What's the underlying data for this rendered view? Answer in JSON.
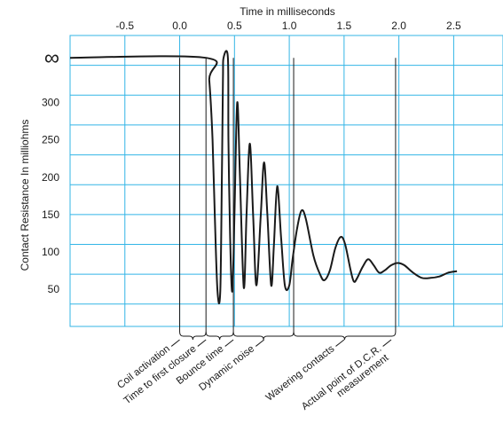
{
  "chart_data": {
    "type": "line",
    "title": "",
    "xlabel": "Time in milliseconds",
    "ylabel": "Contact Resistance In milliohms",
    "x_ticks": [
      {
        "value": -0.5,
        "label": "-0.5"
      },
      {
        "value": 0.0,
        "label": "0.0"
      },
      {
        "value": 0.5,
        "label": "0.5"
      },
      {
        "value": 1.0,
        "label": "1.0"
      },
      {
        "value": 1.5,
        "label": "1.5"
      },
      {
        "value": 2.0,
        "label": "2.0"
      },
      {
        "value": 2.5,
        "label": "2.5"
      }
    ],
    "y_ticks": [
      {
        "value": 50,
        "label": "50"
      },
      {
        "value": 100,
        "label": "100"
      },
      {
        "value": 150,
        "label": "150"
      },
      {
        "value": 200,
        "label": "200"
      },
      {
        "value": 250,
        "label": "250"
      },
      {
        "value": 300,
        "label": "300"
      },
      {
        "value": 360,
        "label": "∞"
      }
    ],
    "xlim": [
      -1.0,
      2.95
    ],
    "ylim": [
      0,
      390
    ],
    "grid": true,
    "grid_color": "#33b5e6",
    "line_color": "#1a1a1a",
    "infinity_value": 360,
    "series": [
      {
        "name": "",
        "points": [
          [
            -1.0,
            360
          ],
          [
            0.24,
            360
          ],
          [
            0.27,
            330
          ],
          [
            0.3,
            250
          ],
          [
            0.32,
            150
          ],
          [
            0.345,
            47
          ],
          [
            0.37,
            47
          ],
          [
            0.385,
            200
          ],
          [
            0.395,
            330
          ],
          [
            0.4,
            360
          ],
          [
            0.44,
            360
          ],
          [
            0.445,
            250
          ],
          [
            0.46,
            120
          ],
          [
            0.48,
            47
          ],
          [
            0.5,
            150
          ],
          [
            0.525,
            300
          ],
          [
            0.55,
            200
          ],
          [
            0.585,
            52
          ],
          [
            0.61,
            150
          ],
          [
            0.64,
            245
          ],
          [
            0.67,
            150
          ],
          [
            0.7,
            55
          ],
          [
            0.74,
            150
          ],
          [
            0.77,
            220
          ],
          [
            0.8,
            150
          ],
          [
            0.835,
            55
          ],
          [
            0.86,
            110
          ],
          [
            0.89,
            188
          ],
          [
            0.925,
            120
          ],
          [
            0.96,
            55
          ],
          [
            1.0,
            55
          ],
          [
            1.03,
            90
          ],
          [
            1.07,
            130
          ],
          [
            1.11,
            155
          ],
          [
            1.15,
            145
          ],
          [
            1.22,
            95
          ],
          [
            1.28,
            70
          ],
          [
            1.32,
            62
          ],
          [
            1.37,
            75
          ],
          [
            1.42,
            105
          ],
          [
            1.47,
            120
          ],
          [
            1.51,
            110
          ],
          [
            1.56,
            75
          ],
          [
            1.59,
            60
          ],
          [
            1.62,
            65
          ],
          [
            1.67,
            80
          ],
          [
            1.72,
            90
          ],
          [
            1.77,
            82
          ],
          [
            1.82,
            72
          ],
          [
            1.87,
            75
          ],
          [
            1.93,
            82
          ],
          [
            1.99,
            85
          ],
          [
            2.05,
            82
          ],
          [
            2.13,
            72
          ],
          [
            2.21,
            65
          ],
          [
            2.29,
            65
          ],
          [
            2.37,
            67
          ],
          [
            2.45,
            72
          ],
          [
            2.53,
            74
          ]
        ]
      }
    ],
    "phases": [
      {
        "x": 0.0,
        "label": "Coil activation"
      },
      {
        "x": 0.24,
        "label": "Time to first closure"
      },
      {
        "x": 0.49,
        "label": "Bounce time"
      },
      {
        "x": 0.77,
        "label": "Dynamic noise"
      },
      {
        "x": 1.5,
        "label": "Wavering contacts"
      },
      {
        "x": 1.93,
        "label": "Actual point of D.C.R. measurement"
      }
    ],
    "phase_boundaries": [
      0.0,
      0.24,
      0.49,
      1.04,
      1.97
    ]
  }
}
